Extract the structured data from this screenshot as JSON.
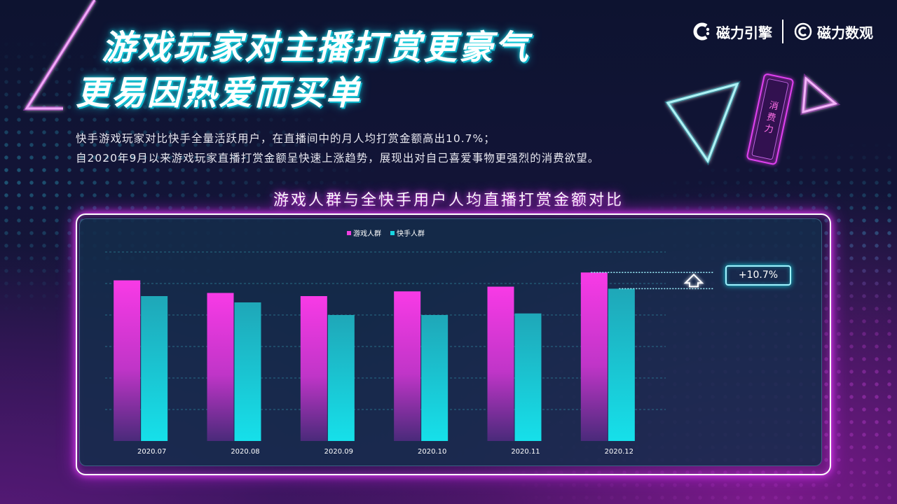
{
  "title": {
    "line1": "游戏玩家对主播打赏更豪气",
    "line2": "更易因热爱而买单"
  },
  "description": {
    "line1": "快手游戏玩家对比快手全量活跃用户，在直播间中的月人均打赏金额高出10.7%；",
    "line2": "自2020年9月以来游戏玩家直播打赏金额呈快速上涨趋势，展现出对自己喜爱事物更强烈的消费欲望。"
  },
  "logos": {
    "left": "磁力引擎",
    "right": "磁力数观"
  },
  "deco_tag": "消费力",
  "colors": {
    "game": "#f040e0",
    "all": "#18d6e2",
    "accent_cyan": "#16d9e3",
    "accent_magenta": "#e040f0"
  },
  "chart_data": {
    "type": "bar",
    "title": "游戏人群与全快手用户人均直播打赏金额对比",
    "categories": [
      "2020.07",
      "2020.08",
      "2020.09",
      "2020.10",
      "2020.11",
      "2020.12"
    ],
    "series": [
      {
        "name": "游戏人群",
        "values": [
          102,
          94,
          92,
          95,
          98,
          107
        ]
      },
      {
        "name": "快手人群",
        "values": [
          92,
          88,
          80,
          80,
          81,
          96.7
        ]
      }
    ],
    "ylim": [
      0,
      120
    ],
    "grid": true,
    "legend": "top",
    "annotation": "+10.7%"
  }
}
